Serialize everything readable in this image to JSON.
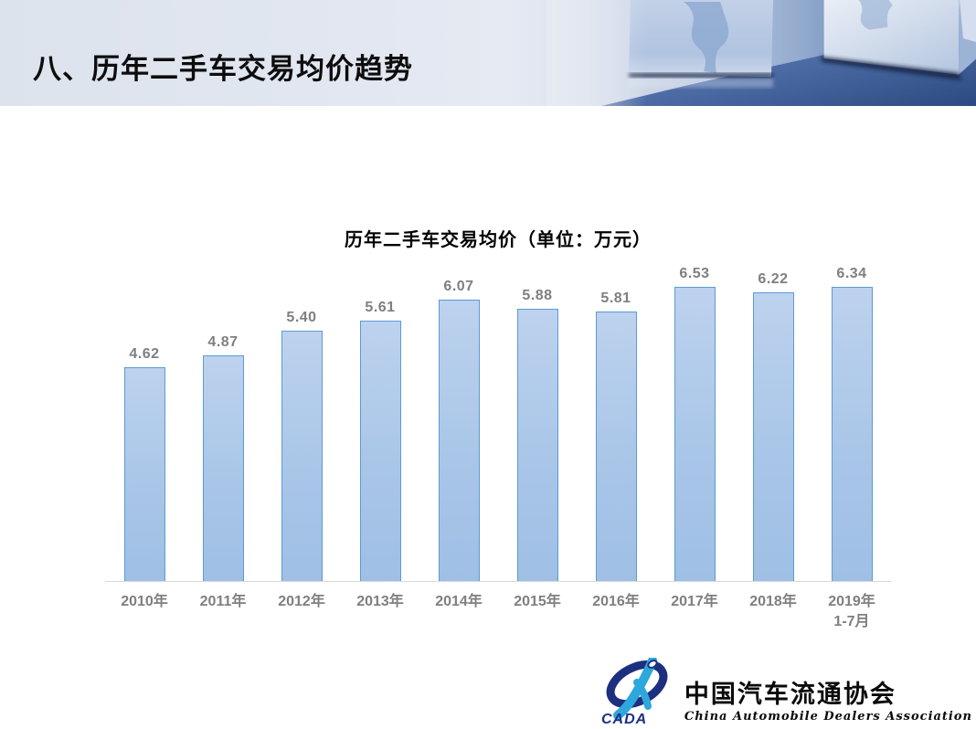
{
  "slide": {
    "header_title": "八、历年二手车交易均价趋势"
  },
  "chart_data": {
    "type": "bar",
    "title": "历年二手车交易均价（单位：万元）",
    "categories": [
      "2010年",
      "2011年",
      "2012年",
      "2013年",
      "2014年",
      "2015年",
      "2016年",
      "2017年",
      "2018年",
      "2019年\n1-7月"
    ],
    "values": [
      4.62,
      4.87,
      5.4,
      5.61,
      6.07,
      5.88,
      5.81,
      6.53,
      6.22,
      6.34
    ],
    "unit": "万元",
    "xlabel": "",
    "ylabel": "",
    "ylim": [
      0,
      6.8
    ],
    "grid": false,
    "legend": false,
    "value_labels": "above-bars",
    "colors": {
      "bar_fill": "#a9c6e8",
      "bar_border": "#5b9bd5",
      "label_gray": "#7f7f7f",
      "axis_line": "#d9d9d9"
    }
  },
  "footer_logo": {
    "acronym": "CADA",
    "name_cn": "中国汽车流通协会",
    "name_en": "China Automobile Dealers Association",
    "colors": {
      "emblem_navy": "#1d2f7f",
      "emblem_blue": "#2ea7dc"
    }
  }
}
